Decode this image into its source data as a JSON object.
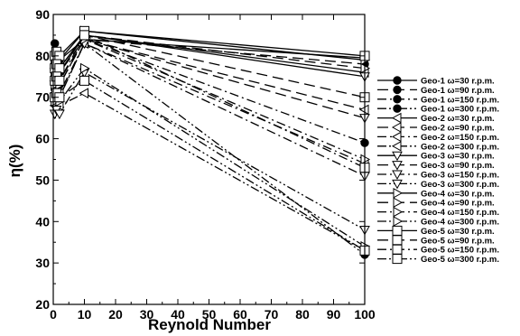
{
  "chart_data": {
    "type": "line",
    "xlabel": "Reynold Number",
    "ylabel": "η(%)",
    "xlim": [
      0,
      100
    ],
    "ylim": [
      20,
      90
    ],
    "x_ticks": [
      0,
      10,
      20,
      30,
      40,
      50,
      60,
      70,
      80,
      90,
      100
    ],
    "y_ticks": [
      20,
      30,
      40,
      50,
      60,
      70,
      80,
      90
    ],
    "legend_position": "right",
    "grid": false,
    "x": [
      0.5,
      1,
      2,
      10,
      100
    ],
    "series": [
      {
        "name": "Geo-1 ω=30 r.p.m.",
        "marker": "circle",
        "dash": "solid",
        "values": [
          83,
          80,
          79,
          84,
          79.5
        ]
      },
      {
        "name": "Geo-1 ω=90 r.p.m.",
        "marker": "circle",
        "dash": "long",
        "values": [
          78,
          77,
          76,
          84,
          78
        ]
      },
      {
        "name": "Geo-1 ω=150 r.p.m.",
        "marker": "circle",
        "dash": "dashdot",
        "values": [
          75,
          74,
          73,
          84,
          59
        ]
      },
      {
        "name": "Geo-1 ω=300 r.p.m.",
        "marker": "circle",
        "dash": "dashdotdot",
        "values": [
          72,
          71,
          70,
          83,
          32
        ]
      },
      {
        "name": "Geo-2 ω=30 r.p.m.",
        "marker": "tri-left",
        "dash": "solid",
        "values": [
          77,
          78,
          77,
          85,
          76
        ]
      },
      {
        "name": "Geo-2 ω=90 r.p.m.",
        "marker": "tri-left",
        "dash": "long",
        "values": [
          74,
          75,
          74,
          84,
          67
        ]
      },
      {
        "name": "Geo-2 ω=150 r.p.m.",
        "marker": "tri-left",
        "dash": "dashdot",
        "values": [
          71,
          72,
          71,
          83,
          54
        ]
      },
      {
        "name": "Geo-2 ω=300 r.p.m.",
        "marker": "tri-left",
        "dash": "dashdotdot",
        "values": [
          68,
          69,
          68,
          71,
          33
        ]
      },
      {
        "name": "Geo-3 ω=30 r.p.m.",
        "marker": "tri-down",
        "dash": "solid",
        "values": [
          76,
          77,
          76,
          85,
          75
        ]
      },
      {
        "name": "Geo-3 ω=90 r.p.m.",
        "marker": "tri-down",
        "dash": "long",
        "values": [
          73,
          74,
          73,
          84,
          65
        ]
      },
      {
        "name": "Geo-3 ω=150 r.p.m.",
        "marker": "tri-down",
        "dash": "dashdot",
        "values": [
          70,
          71,
          70,
          83,
          51
        ]
      },
      {
        "name": "Geo-3 ω=300 r.p.m.",
        "marker": "tri-down",
        "dash": "dashdotdot",
        "values": [
          66,
          67,
          66,
          76,
          38
        ]
      },
      {
        "name": "Geo-4 ω=30 r.p.m.",
        "marker": "tri-right",
        "dash": "solid",
        "values": [
          79,
          80,
          79,
          86,
          79
        ]
      },
      {
        "name": "Geo-4 ω=90 r.p.m.",
        "marker": "tri-right",
        "dash": "long",
        "values": [
          76,
          77,
          76,
          85,
          77
        ]
      },
      {
        "name": "Geo-4 ω=150 r.p.m.",
        "marker": "tri-right",
        "dash": "dashdot",
        "values": [
          73,
          74,
          73,
          84,
          55
        ]
      },
      {
        "name": "Geo-4 ω=300 r.p.m.",
        "marker": "tri-right",
        "dash": "dashdotdot",
        "values": [
          69,
          70,
          69,
          77,
          34
        ]
      },
      {
        "name": "Geo-5 ω=30 r.p.m.",
        "marker": "square",
        "dash": "solid",
        "values": [
          80,
          81,
          80,
          86,
          80
        ]
      },
      {
        "name": "Geo-5 ω=90 r.p.m.",
        "marker": "square",
        "dash": "long",
        "values": [
          77,
          78,
          77,
          85,
          70
        ]
      },
      {
        "name": "Geo-5 ω=150 r.p.m.",
        "marker": "square",
        "dash": "dashdot",
        "values": [
          74,
          75,
          74,
          85,
          53
        ]
      },
      {
        "name": "Geo-5 ω=300 r.p.m.",
        "marker": "square",
        "dash": "dashdotdot",
        "values": [
          70,
          71,
          70,
          74,
          33
        ]
      }
    ]
  },
  "colors": {
    "ink": "#000000",
    "background": "#ffffff"
  }
}
